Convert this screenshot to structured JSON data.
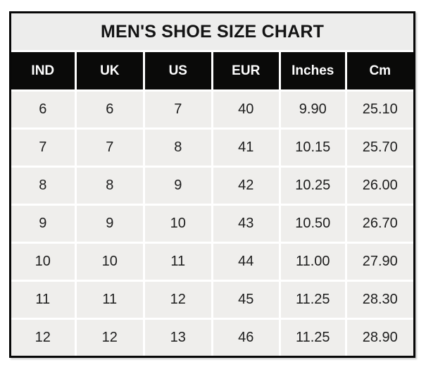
{
  "colors": {
    "page_background": "#ffffff",
    "outer_border": "#070707",
    "title_background": "#ededec",
    "header_background": "#0a0a09",
    "header_text": "#fefefe",
    "cell_background": "#efeeec",
    "cell_text": "#1d1d1d",
    "gridline": "#ffffff"
  },
  "chart_data": {
    "type": "table",
    "title": "MEN'S SHOE SIZE CHART",
    "columns": [
      "IND",
      "UK",
      "US",
      "EUR",
      "Inches",
      "Cm"
    ],
    "rows": [
      [
        "6",
        "6",
        "7",
        "40",
        "9.90",
        "25.10"
      ],
      [
        "7",
        "7",
        "8",
        "41",
        "10.15",
        "25.70"
      ],
      [
        "8",
        "8",
        "9",
        "42",
        "10.25",
        "26.00"
      ],
      [
        "9",
        "9",
        "10",
        "43",
        "10.50",
        "26.70"
      ],
      [
        "10",
        "10",
        "11",
        "44",
        "11.00",
        "27.90"
      ],
      [
        "11",
        "11",
        "12",
        "45",
        "11.25",
        "28.30"
      ],
      [
        "12",
        "12",
        "13",
        "46",
        "11.25",
        "28.90"
      ]
    ],
    "layout_hints": {
      "header_style": "black band, white bold text",
      "body_style": "light gray cells with white gridlines",
      "alignment": "center"
    }
  }
}
